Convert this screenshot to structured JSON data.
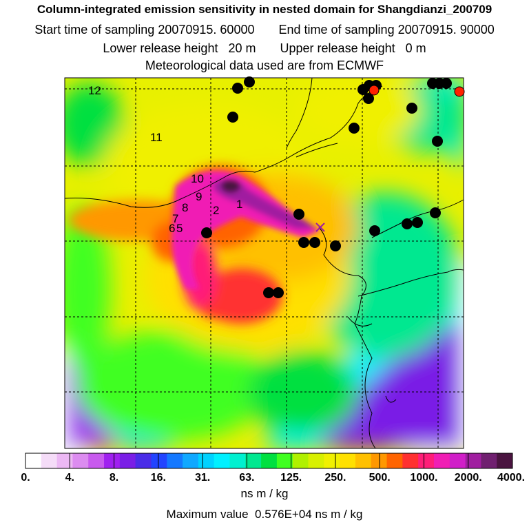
{
  "header": {
    "title": "Column-integrated emission sensitivity in nested domain for Shangdianzi_200709",
    "start_label": "Start time of sampling",
    "start_value": "20070915. 60000",
    "end_label": "End time of sampling",
    "end_value": "20070915. 90000",
    "lower_label": "Lower release height",
    "lower_value": "20 m",
    "upper_label": "Upper release height",
    "upper_value": "0 m",
    "met_line": "Meteorological data used are from ECMWF"
  },
  "map": {
    "receptor_marker": "x-marker",
    "trajectory_labels": [
      "12",
      "11",
      "10",
      "9",
      "8",
      "7",
      "6",
      "5",
      "2",
      "1"
    ],
    "black_dot_color": "#000000",
    "red_dot_color": "#ff2200"
  },
  "colorbar": {
    "colors": [
      "#ffffff",
      "#f5dcf8",
      "#ecb8f4",
      "#dc8cf0",
      "#c85aee",
      "#a020f0",
      "#7a1ee6",
      "#4a2ce8",
      "#2244ff",
      "#1478ff",
      "#10a8ff",
      "#00d2ff",
      "#00f0ff",
      "#00f0d0",
      "#00e890",
      "#00e040",
      "#40ff20",
      "#b0f000",
      "#d8f000",
      "#f0f000",
      "#ffe000",
      "#ffc000",
      "#ff9800",
      "#ff6400",
      "#ff3030",
      "#ff1e78",
      "#f01eb4",
      "#d01ec8",
      "#a01ea0",
      "#702070",
      "#4a1440"
    ],
    "tick_labels": [
      "0.",
      "4.",
      "8.",
      "16.",
      "31.",
      "63.",
      "125.",
      "250.",
      "500.",
      "1000.",
      "2000.",
      "4000."
    ],
    "unit": "ns m / kg"
  },
  "footer": {
    "max_label": "Maximum value",
    "max_value": "0.576E+04 ns m / kg"
  }
}
